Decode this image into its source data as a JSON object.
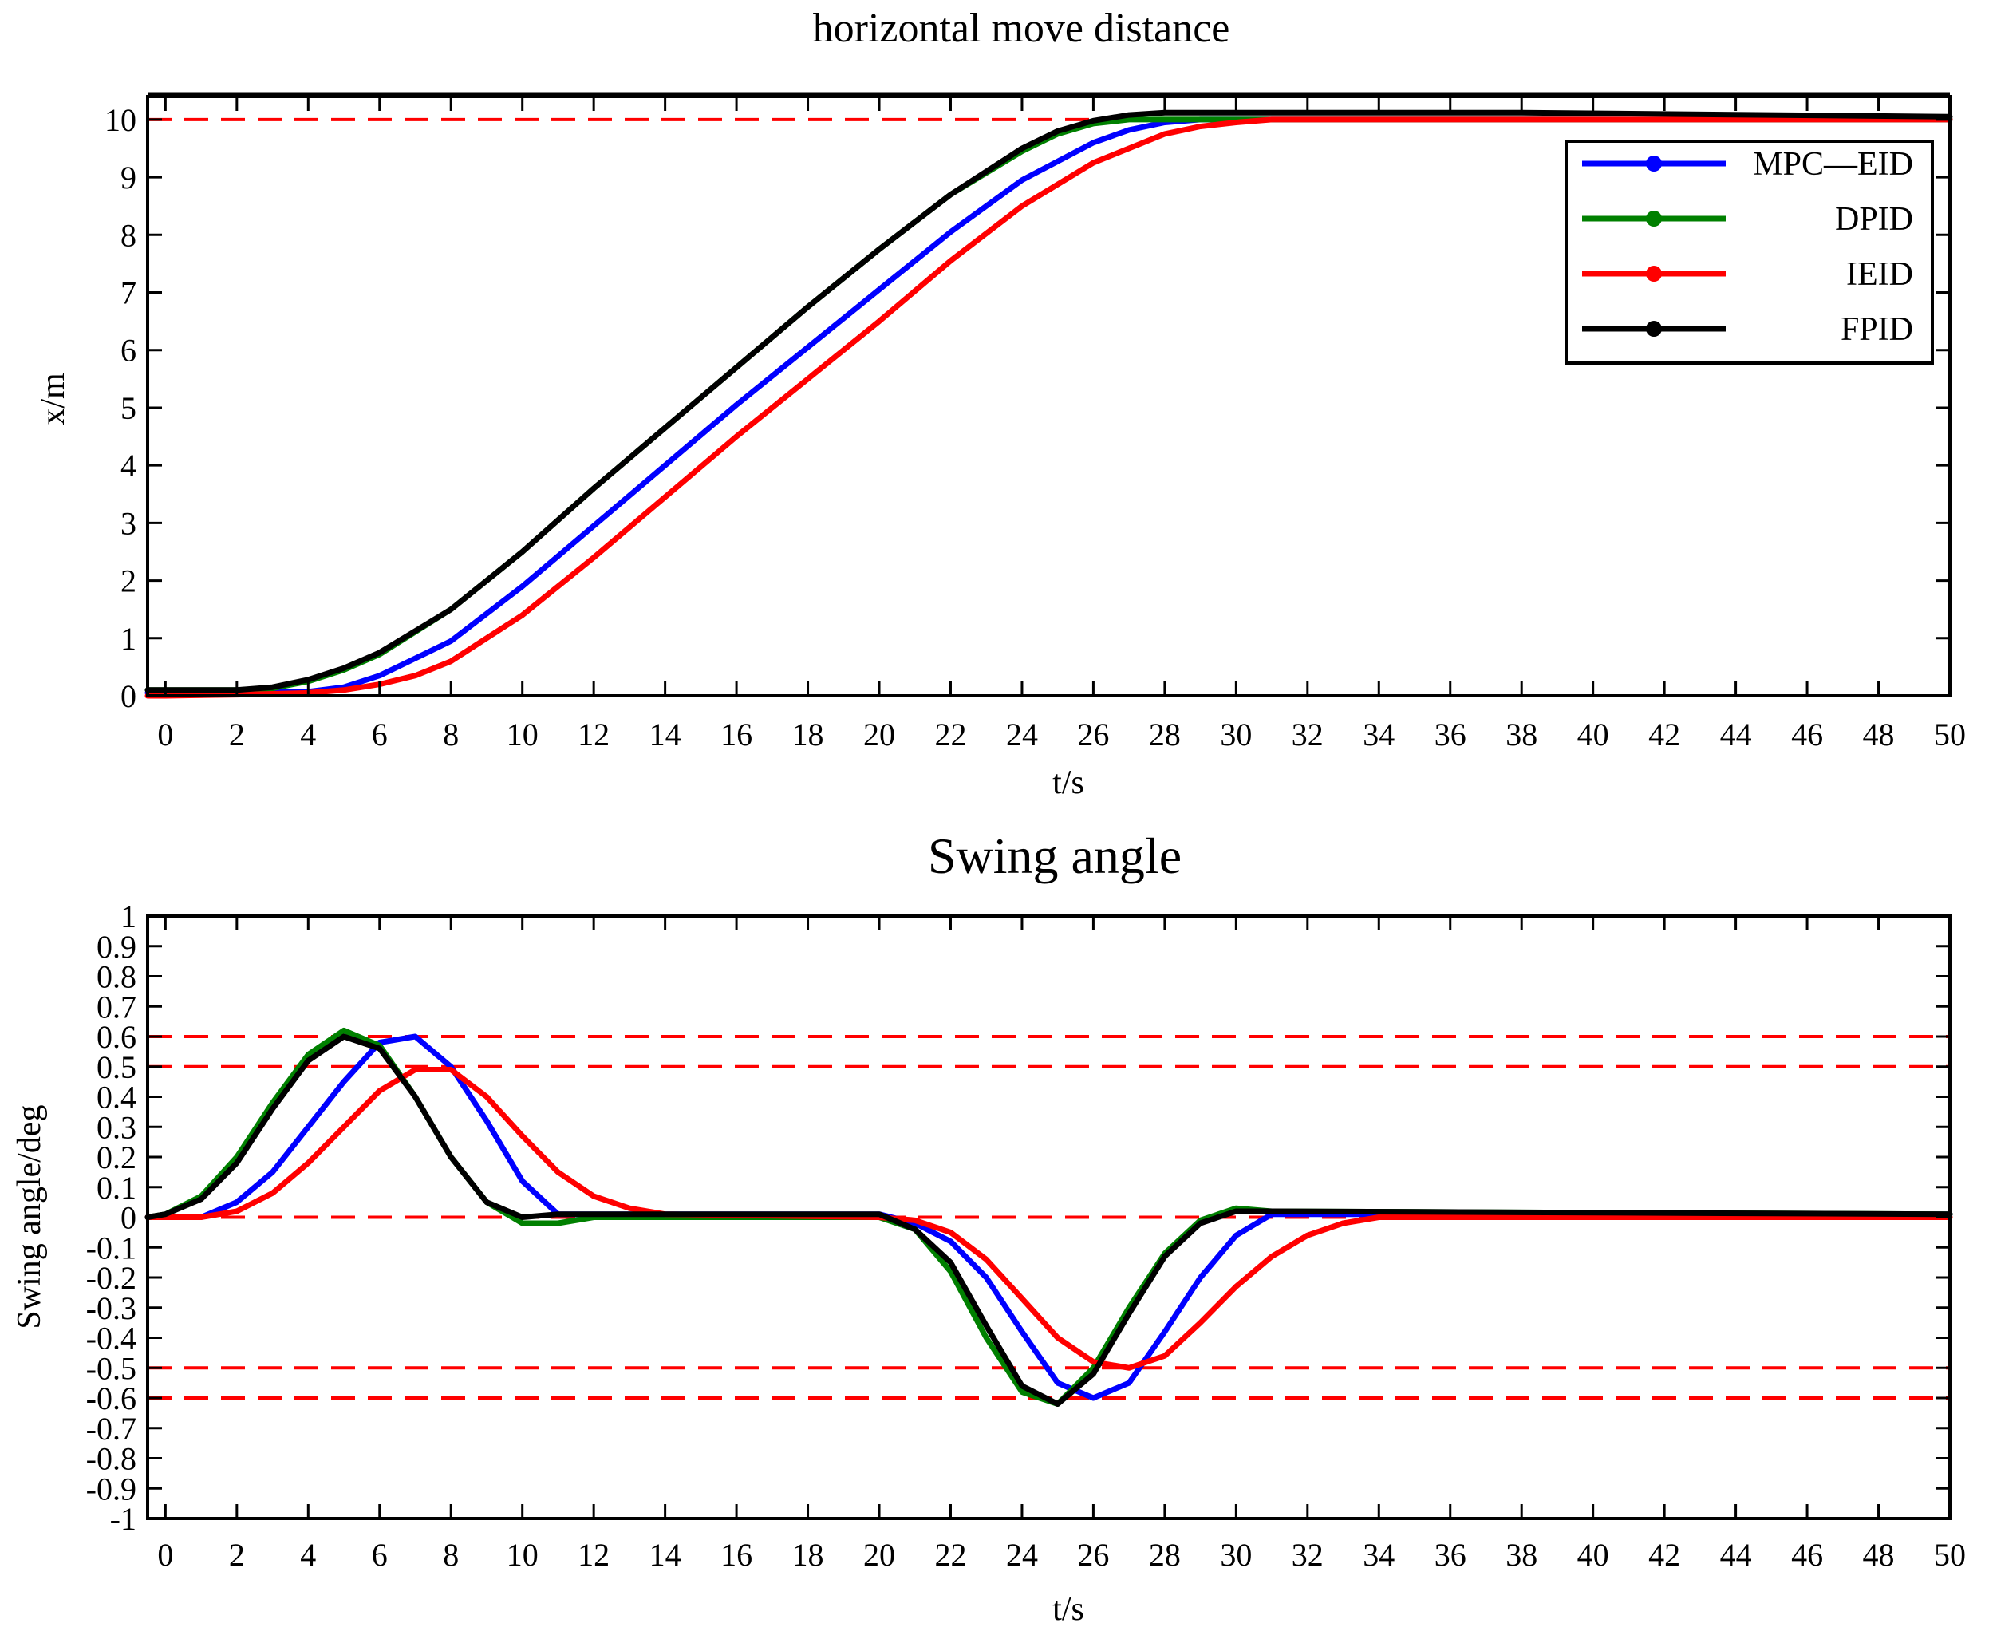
{
  "chart_data": [
    {
      "type": "line",
      "title": "horizontal move distance",
      "xlabel": "t/s",
      "ylabel": "x/m",
      "xlim": [
        -0.5,
        50
      ],
      "ylim": [
        0,
        10.4
      ],
      "xticks": [
        0,
        2,
        4,
        6,
        8,
        10,
        12,
        14,
        16,
        18,
        20,
        22,
        24,
        26,
        28,
        30,
        32,
        34,
        36,
        38,
        40,
        42,
        44,
        46,
        48,
        50
      ],
      "yticks": [
        0,
        1,
        2,
        3,
        4,
        5,
        6,
        7,
        8,
        9,
        10
      ],
      "grid": false,
      "legend": {
        "placement": "top-right",
        "entries": [
          "MPC—EID",
          "DPID",
          "IEID",
          "FPID"
        ]
      },
      "reference_lines": [
        {
          "y": 10,
          "color": "#ff0000",
          "style": "dashed"
        }
      ],
      "series": [
        {
          "name": "MPC—EID",
          "color": "#0000ff",
          "x": [
            -0.5,
            0,
            2,
            4,
            5,
            6,
            8,
            10,
            12,
            14,
            16,
            18,
            20,
            22,
            24,
            26,
            27,
            28,
            29,
            50
          ],
          "y": [
            0.05,
            0.05,
            0.05,
            0.07,
            0.15,
            0.35,
            0.95,
            1.9,
            2.95,
            4.0,
            5.05,
            6.05,
            7.05,
            8.05,
            8.95,
            9.6,
            9.82,
            9.95,
            10.0,
            10.0
          ]
        },
        {
          "name": "DPID",
          "color": "#008000",
          "x": [
            -0.5,
            0,
            2,
            3,
            4,
            5,
            6,
            8,
            10,
            12,
            14,
            16,
            18,
            20,
            22,
            24,
            25,
            26,
            27,
            28,
            50
          ],
          "y": [
            0.1,
            0.1,
            0.1,
            0.13,
            0.25,
            0.45,
            0.72,
            1.5,
            2.5,
            3.6,
            4.65,
            5.7,
            6.75,
            7.75,
            8.7,
            9.45,
            9.75,
            9.93,
            10.0,
            10.0,
            10.0
          ]
        },
        {
          "name": "IEID",
          "color": "#ff0000",
          "x": [
            -0.5,
            0,
            2,
            4,
            5,
            6,
            7,
            8,
            10,
            12,
            14,
            16,
            18,
            20,
            22,
            24,
            26,
            28,
            29,
            30,
            31,
            50
          ],
          "y": [
            0.0,
            0.0,
            0.02,
            0.05,
            0.1,
            0.2,
            0.35,
            0.6,
            1.4,
            2.4,
            3.45,
            4.5,
            5.5,
            6.5,
            7.55,
            8.5,
            9.25,
            9.75,
            9.88,
            9.95,
            10.0,
            10.0
          ]
        },
        {
          "name": "FPID",
          "color": "#000000",
          "x": [
            -0.5,
            0,
            2,
            3,
            4,
            5,
            6,
            8,
            10,
            12,
            14,
            16,
            18,
            20,
            22,
            24,
            25,
            26,
            27,
            28,
            38,
            50
          ],
          "y": [
            0.1,
            0.1,
            0.1,
            0.15,
            0.28,
            0.48,
            0.75,
            1.5,
            2.5,
            3.6,
            4.65,
            5.7,
            6.75,
            7.75,
            8.7,
            9.5,
            9.8,
            9.98,
            10.08,
            10.12,
            10.12,
            10.05
          ]
        }
      ]
    },
    {
      "type": "line",
      "title": "Swing angle",
      "xlabel": "t/s",
      "ylabel": "Swing angle/deg",
      "xlim": [
        -0.5,
        50
      ],
      "ylim": [
        -1,
        1
      ],
      "xticks": [
        0,
        2,
        4,
        6,
        8,
        10,
        12,
        14,
        16,
        18,
        20,
        22,
        24,
        26,
        28,
        30,
        32,
        34,
        36,
        38,
        40,
        42,
        44,
        46,
        48,
        50
      ],
      "yticks": [
        1,
        0.9,
        0.8,
        0.7,
        0.6,
        0.5,
        0.4,
        0.3,
        0.2,
        0.1,
        0,
        -0.1,
        -0.2,
        -0.3,
        -0.4,
        -0.5,
        -0.6,
        -0.7,
        -0.8,
        -0.9,
        -1
      ],
      "grid": false,
      "reference_lines": [
        {
          "y": 0.6,
          "color": "#ff0000",
          "style": "dashed"
        },
        {
          "y": 0.5,
          "color": "#ff0000",
          "style": "dashed"
        },
        {
          "y": 0,
          "color": "#ff0000",
          "style": "dashed"
        },
        {
          "y": -0.5,
          "color": "#ff0000",
          "style": "dashed"
        },
        {
          "y": -0.6,
          "color": "#ff0000",
          "style": "dashed"
        }
      ],
      "series": [
        {
          "name": "MPC—EID",
          "color": "#0000ff",
          "x": [
            -0.5,
            1,
            2,
            3,
            4,
            5,
            6,
            7,
            8,
            9,
            10,
            11,
            20,
            21,
            22,
            23,
            24,
            25,
            26,
            27,
            28,
            29,
            30,
            31,
            50
          ],
          "y": [
            0,
            0,
            0.05,
            0.15,
            0.3,
            0.45,
            0.58,
            0.6,
            0.5,
            0.32,
            0.12,
            0.01,
            0.01,
            -0.02,
            -0.08,
            -0.2,
            -0.38,
            -0.55,
            -0.6,
            -0.55,
            -0.38,
            -0.2,
            -0.06,
            0.01,
            0.01
          ]
        },
        {
          "name": "DPID",
          "color": "#008000",
          "x": [
            -0.5,
            0,
            1,
            2,
            3,
            4,
            5,
            6,
            7,
            8,
            9,
            10,
            11,
            12,
            20,
            21,
            22,
            23,
            24,
            25,
            26,
            27,
            28,
            29,
            30,
            31,
            50
          ],
          "y": [
            0,
            0.01,
            0.07,
            0.2,
            0.38,
            0.54,
            0.62,
            0.57,
            0.4,
            0.2,
            0.05,
            -0.02,
            -0.02,
            0,
            0,
            -0.04,
            -0.18,
            -0.4,
            -0.58,
            -0.62,
            -0.5,
            -0.3,
            -0.12,
            -0.01,
            0.03,
            0.02,
            0.01
          ]
        },
        {
          "name": "IEID",
          "color": "#ff0000",
          "x": [
            -0.5,
            1,
            2,
            3,
            4,
            5,
            6,
            7,
            8,
            9,
            10,
            11,
            12,
            13,
            14,
            20,
            21,
            22,
            23,
            24,
            25,
            26,
            27,
            28,
            29,
            30,
            31,
            32,
            33,
            34,
            50
          ],
          "y": [
            0,
            0,
            0.02,
            0.08,
            0.18,
            0.3,
            0.42,
            0.49,
            0.49,
            0.4,
            0.27,
            0.15,
            0.07,
            0.03,
            0.01,
            0,
            -0.01,
            -0.05,
            -0.14,
            -0.27,
            -0.4,
            -0.48,
            -0.5,
            -0.46,
            -0.35,
            -0.23,
            -0.13,
            -0.06,
            -0.02,
            0,
            0
          ]
        },
        {
          "name": "FPID",
          "color": "#000000",
          "x": [
            -0.5,
            0,
            1,
            2,
            3,
            4,
            5,
            6,
            7,
            8,
            9,
            10,
            11,
            12,
            20,
            21,
            22,
            23,
            24,
            25,
            26,
            27,
            28,
            29,
            30,
            31,
            50
          ],
          "y": [
            0,
            0.01,
            0.06,
            0.18,
            0.36,
            0.52,
            0.6,
            0.56,
            0.4,
            0.2,
            0.05,
            0,
            0.01,
            0.01,
            0.01,
            -0.04,
            -0.15,
            -0.36,
            -0.56,
            -0.62,
            -0.52,
            -0.32,
            -0.13,
            -0.02,
            0.02,
            0.02,
            0.01
          ]
        }
      ]
    }
  ]
}
